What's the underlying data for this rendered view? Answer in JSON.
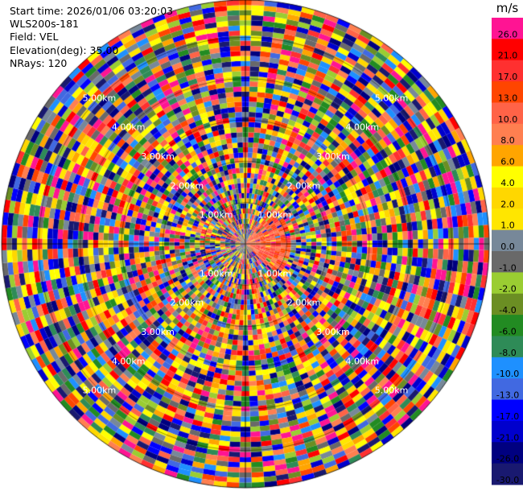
{
  "info": {
    "start_time": "Start time: 2026/01/06 03:20:03",
    "site": "WLS200s-181",
    "field": "Field: VEL",
    "elevation": "Elevation(deg): 35.00",
    "nrays": "NRays: 120"
  },
  "colorbar": {
    "unit": "m/s",
    "levels": [
      {
        "label": "26.0",
        "color": "#ff1493"
      },
      {
        "label": "21.0",
        "color": "#ff0000"
      },
      {
        "label": "17.0",
        "color": "#ff3030"
      },
      {
        "label": "13.0",
        "color": "#ff4500"
      },
      {
        "label": "10.0",
        "color": "#ff6347"
      },
      {
        "label": "8.0",
        "color": "#ff7f50"
      },
      {
        "label": "6.0",
        "color": "#ffa500"
      },
      {
        "label": "4.0",
        "color": "#ffff00"
      },
      {
        "label": "2.0",
        "color": "#ffd700"
      },
      {
        "label": "1.0",
        "color": "#ffe600"
      },
      {
        "label": "0.0",
        "color": "#778899"
      },
      {
        "label": "-1.0",
        "color": "#696969"
      },
      {
        "label": "-2.0",
        "color": "#9acd32"
      },
      {
        "label": "-4.0",
        "color": "#6b8e23"
      },
      {
        "label": "-6.0",
        "color": "#228b22"
      },
      {
        "label": "-8.0",
        "color": "#2e8b57"
      },
      {
        "label": "-10.0",
        "color": "#1e90ff"
      },
      {
        "label": "-13.0",
        "color": "#4169e1"
      },
      {
        "label": "-17.0",
        "color": "#0000ff"
      },
      {
        "label": "-21.0",
        "color": "#0000cd"
      },
      {
        "label": "-26.0",
        "color": "#000080"
      },
      {
        "label": "-30.0",
        "color": "#191970"
      }
    ]
  },
  "chart_data": {
    "type": "heatmap",
    "subtype": "ppi-polar",
    "field": "VEL",
    "units": "m/s",
    "nrays": 120,
    "elevation_deg": 35.0,
    "max_range_km": 5.9,
    "range_ring_labels": [
      "1.00km",
      "2.00km",
      "3.00km",
      "4.00km",
      "5.00km"
    ],
    "range_ring_values_km": [
      1,
      2,
      3,
      4,
      5
    ],
    "ring_label_bearings_deg": [
      45,
      135,
      225,
      315
    ],
    "note_colors": "Velocity bins appear as noisy multicolored range gates; a coherent positive-velocity (orange/red) patch lies just east-northeast of the center within ~1 km."
  }
}
